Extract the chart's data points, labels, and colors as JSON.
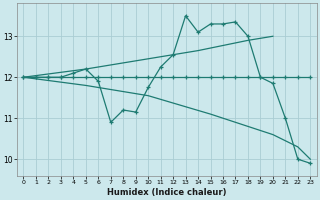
{
  "xlabel": "Humidex (Indice chaleur)",
  "bg_color": "#cce8ec",
  "grid_color": "#aacdd4",
  "line_color": "#1e7b72",
  "xlim": [
    -0.5,
    23.5
  ],
  "ylim": [
    9.6,
    13.8
  ],
  "yticks": [
    10,
    11,
    12,
    13
  ],
  "xticks": [
    0,
    1,
    2,
    3,
    4,
    5,
    6,
    7,
    8,
    9,
    10,
    11,
    12,
    13,
    14,
    15,
    16,
    17,
    18,
    19,
    20,
    21,
    22,
    23
  ],
  "line1_x": [
    0,
    1,
    2,
    3,
    4,
    5,
    6,
    7,
    8,
    9,
    10,
    11,
    12,
    13,
    14,
    15,
    16,
    17,
    18,
    19,
    20,
    21,
    22,
    23
  ],
  "line1_y": [
    12.0,
    12.0,
    12.0,
    12.0,
    12.1,
    12.2,
    11.9,
    10.9,
    11.2,
    11.15,
    11.75,
    12.25,
    12.55,
    13.5,
    13.1,
    13.3,
    13.3,
    13.35,
    13.0,
    12.0,
    11.85,
    11.0,
    10.0,
    9.9
  ],
  "line2_x": [
    0,
    1,
    2,
    3,
    4,
    5,
    6,
    7,
    8,
    9,
    10,
    11,
    12,
    13,
    14,
    15,
    16,
    17,
    18,
    19,
    20,
    21,
    22,
    23
  ],
  "line2_y": [
    12.0,
    12.0,
    12.0,
    12.0,
    12.0,
    12.0,
    12.0,
    12.0,
    12.0,
    12.0,
    12.0,
    12.0,
    12.0,
    12.0,
    12.0,
    12.0,
    12.0,
    12.0,
    12.0,
    12.0,
    12.0,
    12.0,
    12.0,
    12.0
  ],
  "line3_x": [
    0,
    5,
    10,
    12,
    14,
    18,
    20
  ],
  "line3_y": [
    12.0,
    12.2,
    12.45,
    12.55,
    12.65,
    12.9,
    13.0
  ],
  "line4_x": [
    0,
    5,
    10,
    15,
    20,
    22,
    23
  ],
  "line4_y": [
    12.0,
    11.8,
    11.55,
    11.1,
    10.6,
    10.3,
    10.0
  ]
}
